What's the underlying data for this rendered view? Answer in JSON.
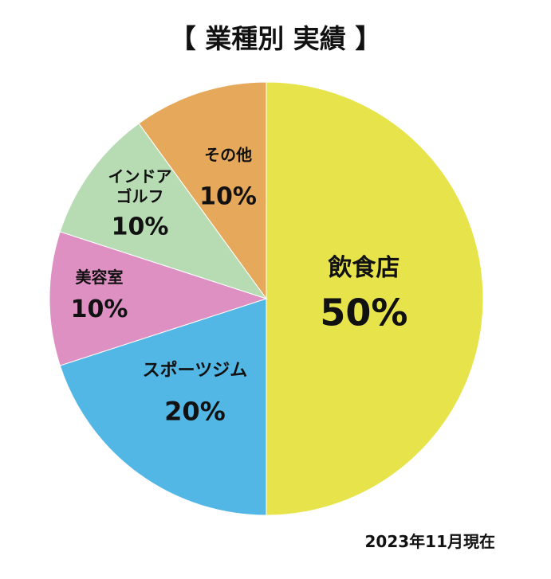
{
  "chart_data": {
    "type": "pie",
    "title": "【 業種別 実績 】",
    "slices": [
      {
        "label": "飲食店",
        "value": 50,
        "value_label": "50%",
        "color": "#e6e44a"
      },
      {
        "label": "スポーツジム",
        "value": 20,
        "value_label": "20%",
        "color": "#53b7e6"
      },
      {
        "label": "美容室",
        "value": 10,
        "value_label": "10%",
        "color": "#de90c2"
      },
      {
        "label": "インドア\nゴルフ",
        "value": 10,
        "value_label": "10%",
        "color": "#b7dcb4"
      },
      {
        "label": "その他",
        "value": 10,
        "value_label": "10%",
        "color": "#e6a85a"
      }
    ],
    "start": "12 o'clock",
    "direction": "clockwise",
    "legend": "none"
  },
  "footnote": "2023年11月現在"
}
